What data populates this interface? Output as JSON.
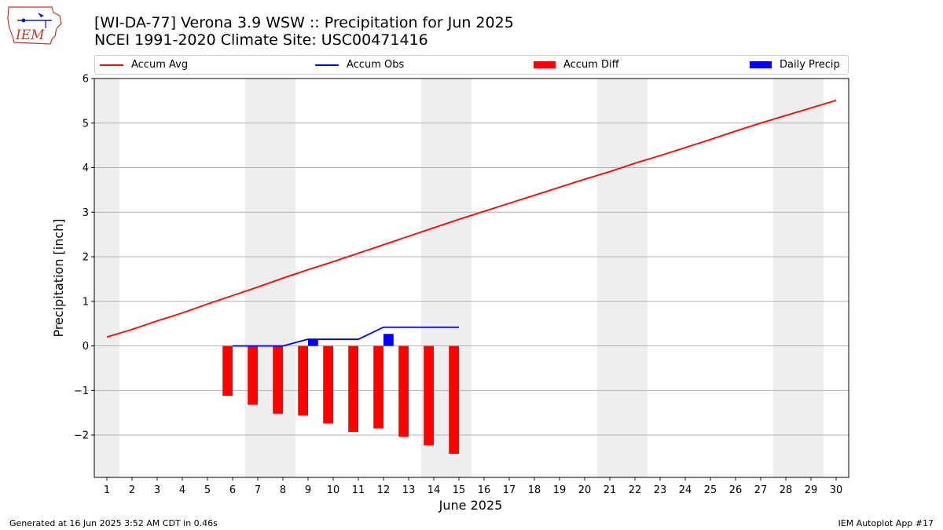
{
  "title_line1": "[WI-DA-77] Verona 3.9 WSW :: Precipitation for Jun 2025",
  "title_line2": "NCEI 1991-2020 Climate Site: USC00471416",
  "logo_text": "IEM",
  "footer_left": "Generated at 16 Jun 2025 3:52 AM CDT in 0.46s",
  "footer_right": "IEM Autoplot App #17",
  "colors": {
    "avg": "#ff0000",
    "obs": "#0000ff",
    "diff": "#ff0000",
    "daily": "#0000ff",
    "weekend": "#eeeeee",
    "grid": "#b0b0b0"
  },
  "chart_data": {
    "type": "bar",
    "xlabel": "June 2025",
    "ylabel": "Precipitation [inch]",
    "ylim": [
      -2.95,
      6
    ],
    "xlim": [
      0.5,
      30.5
    ],
    "yticks": [
      6,
      5,
      4,
      3,
      2,
      1,
      0,
      -1,
      -2
    ],
    "ytick_labels": [
      "6",
      "5",
      "4",
      "3",
      "2",
      "1",
      "0",
      "−1",
      "−2"
    ],
    "x": [
      1,
      2,
      3,
      4,
      5,
      6,
      7,
      8,
      9,
      10,
      11,
      12,
      13,
      14,
      15,
      16,
      17,
      18,
      19,
      20,
      21,
      22,
      23,
      24,
      25,
      26,
      27,
      28,
      29,
      30
    ],
    "x_labels": [
      "1",
      "2",
      "3",
      "4",
      "5",
      "6",
      "7",
      "8",
      "9",
      "10",
      "11",
      "12",
      "13",
      "14",
      "15",
      "16",
      "17",
      "18",
      "19",
      "20",
      "21",
      "22",
      "23",
      "24",
      "25",
      "26",
      "27",
      "28",
      "29",
      "30"
    ],
    "grid": true,
    "legend_placement": "top",
    "weekend_shading": [
      [
        0.5,
        1.5
      ],
      [
        6.5,
        8.5
      ],
      [
        13.5,
        15.5
      ],
      [
        20.5,
        22.5
      ],
      [
        27.5,
        29.5
      ]
    ],
    "legend": [
      "Accum Avg",
      "Accum Obs",
      "Accum Diff",
      "Daily Precip"
    ],
    "series": [
      {
        "name": "Accum Avg",
        "kind": "line",
        "x": [
          1,
          2,
          3,
          4,
          5,
          6,
          7,
          8,
          9,
          10,
          11,
          12,
          13,
          14,
          15,
          16,
          17,
          18,
          19,
          20,
          21,
          22,
          23,
          24,
          25,
          26,
          27,
          28,
          29,
          30
        ],
        "values": [
          0.2,
          0.37,
          0.56,
          0.74,
          0.94,
          1.13,
          1.32,
          1.52,
          1.71,
          1.89,
          2.08,
          2.27,
          2.46,
          2.65,
          2.84,
          3.02,
          3.2,
          3.38,
          3.56,
          3.74,
          3.91,
          4.1,
          4.27,
          4.45,
          4.63,
          4.82,
          5.0,
          5.17,
          5.34,
          5.51
        ]
      },
      {
        "name": "Accum Obs",
        "kind": "line",
        "x": [
          6,
          7,
          8,
          9,
          10,
          11,
          12,
          13,
          14,
          15
        ],
        "values": [
          0.0,
          0.0,
          0.0,
          0.15,
          0.15,
          0.15,
          0.42,
          0.42,
          0.42,
          0.42
        ]
      },
      {
        "name": "Accum Diff",
        "kind": "bar",
        "offset": -0.2,
        "x": [
          6,
          7,
          8,
          9,
          10,
          11,
          12,
          13,
          14,
          15
        ],
        "values": [
          -1.12,
          -1.32,
          -1.52,
          -1.56,
          -1.74,
          -1.93,
          -1.85,
          -2.04,
          -2.23,
          -2.42
        ]
      },
      {
        "name": "Daily Precip",
        "kind": "bar",
        "offset": 0.2,
        "x": [
          9,
          12
        ],
        "values": [
          0.15,
          0.27
        ]
      }
    ]
  }
}
